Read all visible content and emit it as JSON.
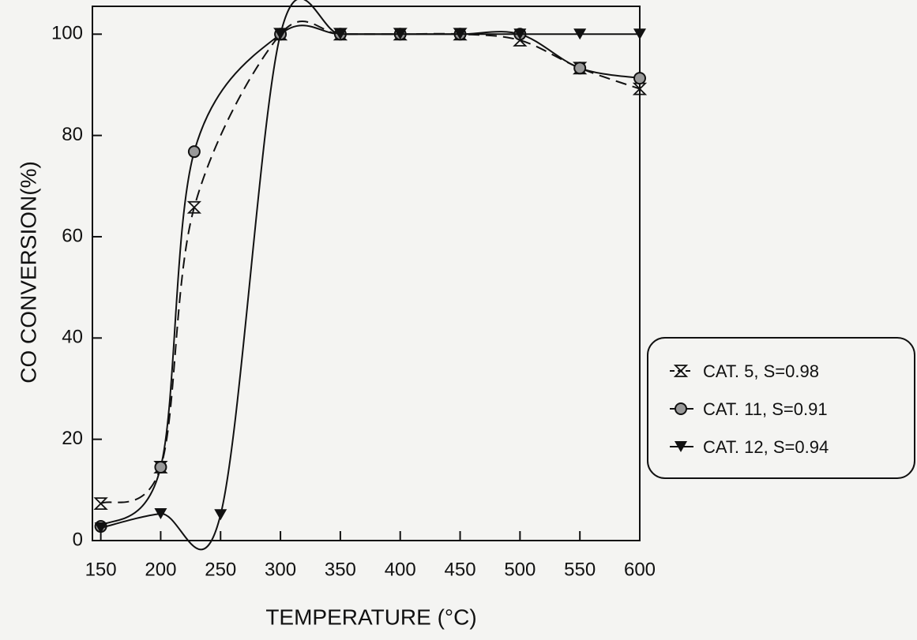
{
  "chart_data": {
    "type": "line",
    "x_label": "TEMPERATURE (°C)",
    "y_label": "CO  CONVERSION(%)",
    "xlim": [
      143,
      600
    ],
    "ylim": [
      0,
      105.5
    ],
    "xticks": [
      150,
      200,
      250,
      300,
      350,
      400,
      450,
      500,
      550,
      600
    ],
    "yticks": [
      0,
      20,
      40,
      60,
      80,
      100
    ],
    "series": [
      {
        "name": "CAT. 5, S=0.98",
        "color": "#111111",
        "marker": "x",
        "dashed": true,
        "x": [
          150,
          200,
          228,
          300,
          350,
          400,
          450,
          500,
          550,
          600
        ],
        "values": [
          7.3,
          14.5,
          65.8,
          100,
          100,
          100,
          100,
          98.8,
          93.3,
          89.2
        ]
      },
      {
        "name": "CAT. 11, S=0.91",
        "color": "#111111",
        "marker": "circle",
        "dashed": false,
        "x": [
          150,
          200,
          228,
          300,
          350,
          400,
          450,
          500,
          550,
          600
        ],
        "values": [
          2.8,
          14.5,
          76.8,
          100,
          100,
          100,
          100,
          100,
          93.3,
          91.3
        ]
      },
      {
        "name": "CAT. 12, S=0.94",
        "color": "#111111",
        "marker": "triangle-down",
        "dashed": false,
        "x": [
          150,
          200,
          250,
          300,
          350,
          400,
          450,
          500,
          550,
          600
        ],
        "values": [
          2.5,
          5.3,
          5.1,
          100,
          100,
          100,
          100,
          100,
          100,
          100
        ]
      }
    ]
  }
}
